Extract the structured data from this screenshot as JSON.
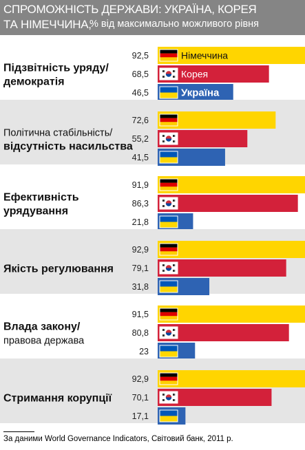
{
  "header": {
    "title_line1": "СПРОМОЖНІСТЬ ДЕРЖАВИ: УКРАЇНА, КОРЕЯ",
    "title_line2": "ТА НІМЕЧЧИНА,",
    "subtitle": "% від максимально можливого рівня"
  },
  "footnote": "За даними World Governance Indicators, Світовий банк, 2011 р.",
  "colors": {
    "germany": "#ffd500",
    "korea": "#d3213a",
    "ukraine": "#2e63b3",
    "band": "#e5e5e5",
    "header": "#858585"
  },
  "chart_data": {
    "type": "bar",
    "orientation": "horizontal",
    "xlim": [
      0,
      100
    ],
    "series": [
      {
        "name": "Німеччина",
        "country": "germany",
        "flag": "germany-flag-icon"
      },
      {
        "name": "Корея",
        "country": "korea",
        "flag": "korea-flag-icon"
      },
      {
        "name": "Україна",
        "country": "ukraine",
        "flag": "ukraine-flag-icon"
      }
    ],
    "categories": [
      {
        "lines": [
          {
            "text": "Підзвітність уряду/",
            "bold": true
          },
          {
            "text": "демократія",
            "bold": true
          }
        ],
        "values": [
          92.5,
          68.5,
          46.5
        ],
        "labels": [
          "92,5",
          "68,5",
          "46,5"
        ],
        "shaded": false,
        "show_names": true
      },
      {
        "lines": [
          {
            "text": "Політична стабільність/",
            "bold": false
          },
          {
            "text": "відсутність насильства",
            "bold": true
          }
        ],
        "values": [
          72.6,
          55.2,
          41.5
        ],
        "labels": [
          "72,6",
          "55,2",
          "41,5"
        ],
        "shaded": true,
        "show_names": false
      },
      {
        "lines": [
          {
            "text": "Ефективність",
            "bold": true
          },
          {
            "text": "урядування",
            "bold": true
          }
        ],
        "values": [
          91.9,
          86.3,
          21.8
        ],
        "labels": [
          "91,9",
          "86,3",
          "21,8"
        ],
        "shaded": false,
        "show_names": false
      },
      {
        "lines": [
          {
            "text": "Якість регулювання",
            "bold": true
          }
        ],
        "values": [
          92.9,
          79.1,
          31.8
        ],
        "labels": [
          "92,9",
          "79,1",
          "31,8"
        ],
        "shaded": true,
        "show_names": false
      },
      {
        "lines": [
          {
            "text": "Влада закону/",
            "bold": true
          },
          {
            "text": "правова держава",
            "bold": false
          }
        ],
        "values": [
          91.5,
          80.8,
          23.0
        ],
        "labels": [
          "91,5",
          "80,8",
          "23"
        ],
        "shaded": false,
        "show_names": false
      },
      {
        "lines": [
          {
            "text": "Стримання корупції",
            "bold": true
          }
        ],
        "values": [
          92.9,
          70.1,
          17.1
        ],
        "labels": [
          "92,9",
          "70,1",
          "17,1"
        ],
        "shaded": true,
        "show_names": false
      }
    ]
  }
}
